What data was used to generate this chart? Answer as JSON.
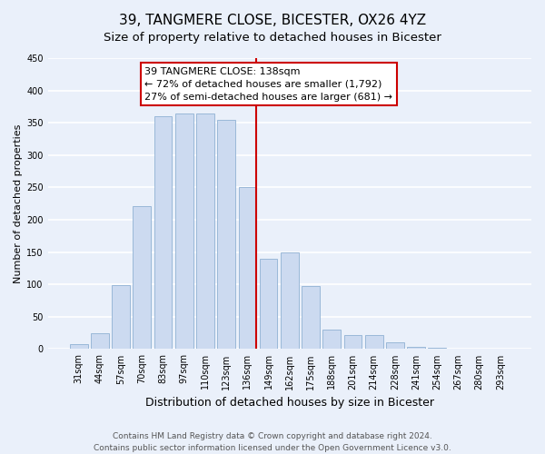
{
  "title": "39, TANGMERE CLOSE, BICESTER, OX26 4YZ",
  "subtitle": "Size of property relative to detached houses in Bicester",
  "xlabel": "Distribution of detached houses by size in Bicester",
  "ylabel": "Number of detached properties",
  "bar_labels": [
    "31sqm",
    "44sqm",
    "57sqm",
    "70sqm",
    "83sqm",
    "97sqm",
    "110sqm",
    "123sqm",
    "136sqm",
    "149sqm",
    "162sqm",
    "175sqm",
    "188sqm",
    "201sqm",
    "214sqm",
    "228sqm",
    "241sqm",
    "254sqm",
    "267sqm",
    "280sqm",
    "293sqm"
  ],
  "bar_values": [
    8,
    25,
    99,
    221,
    360,
    365,
    365,
    355,
    250,
    140,
    149,
    97,
    30,
    22,
    22,
    10,
    3,
    2,
    1,
    0,
    1
  ],
  "bar_color": "#ccdaf0",
  "bar_edge_color": "#9ab8d8",
  "vline_bar_idx": 8,
  "vline_color": "#cc0000",
  "ann_line1": "39 TANGMERE CLOSE: 138sqm",
  "ann_line2": "← 72% of detached houses are smaller (1,792)",
  "ann_line3": "27% of semi-detached houses are larger (681) →",
  "annotation_box_edge_color": "#cc0000",
  "ylim": [
    0,
    450
  ],
  "yticks": [
    0,
    50,
    100,
    150,
    200,
    250,
    300,
    350,
    400,
    450
  ],
  "footer_line1": "Contains HM Land Registry data © Crown copyright and database right 2024.",
  "footer_line2": "Contains public sector information licensed under the Open Government Licence v3.0.",
  "bg_color": "#eaf0fa",
  "grid_color": "#ffffff",
  "title_fontsize": 11,
  "subtitle_fontsize": 9.5,
  "xlabel_fontsize": 9,
  "ylabel_fontsize": 8,
  "tick_fontsize": 7,
  "ann_fontsize": 8,
  "footer_fontsize": 6.5
}
